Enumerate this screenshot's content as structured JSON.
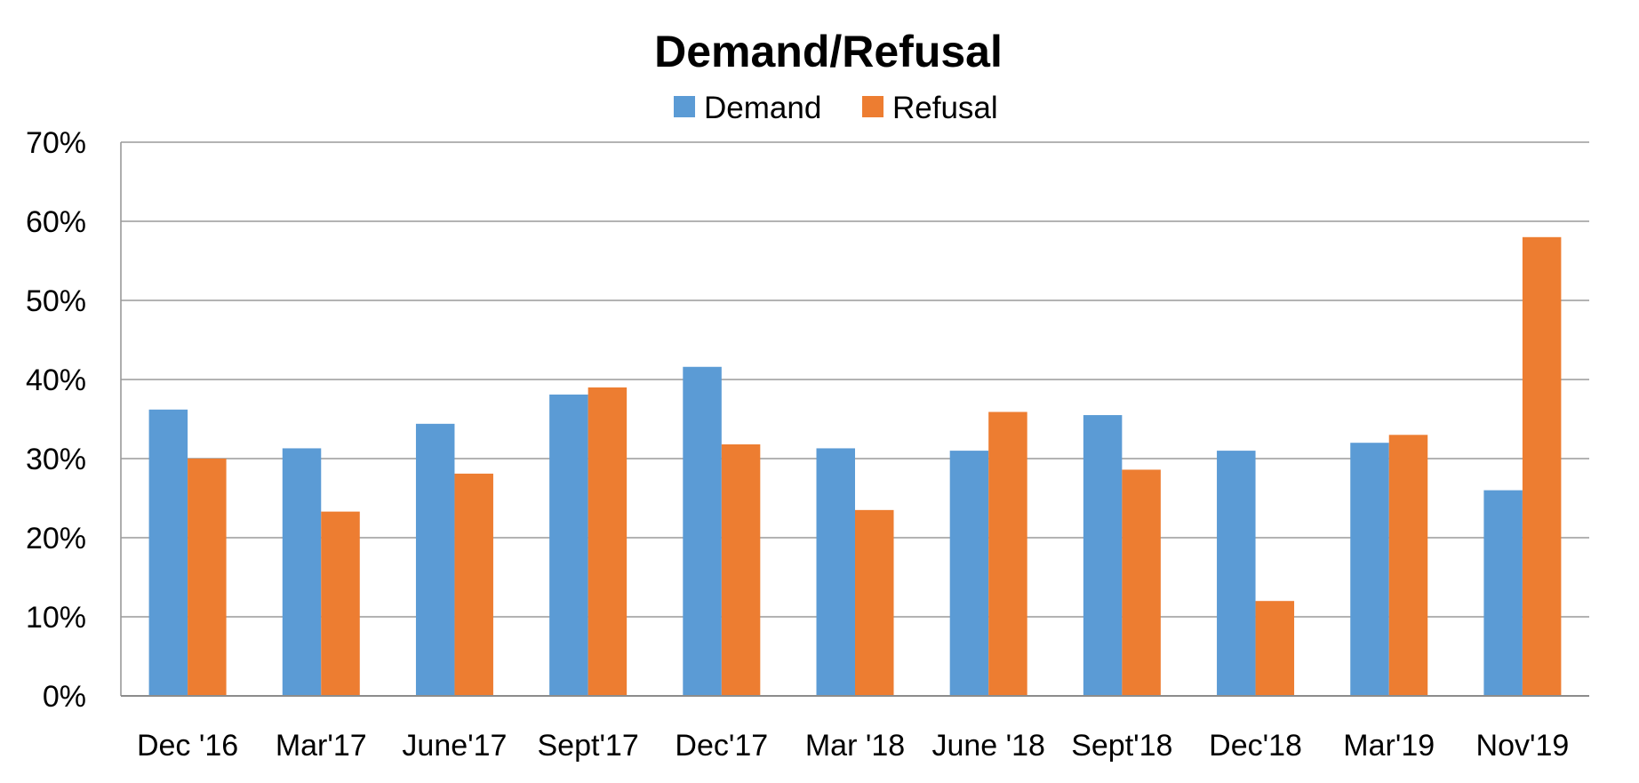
{
  "chart_data": {
    "type": "bar",
    "title": "Demand/Refusal",
    "xlabel": "",
    "ylabel": "",
    "categories": [
      "Dec '16",
      "Mar'17",
      "June'17",
      "Sept'17",
      "Dec'17",
      "Mar '18",
      "June '18",
      "Sept'18",
      "Dec'18",
      "Mar'19",
      "Nov'19"
    ],
    "series": [
      {
        "name": "Demand",
        "color": "#5b9bd5",
        "values": [
          36.2,
          31.3,
          34.4,
          38.1,
          41.6,
          31.3,
          31.0,
          35.5,
          31.0,
          32.0,
          26.0
        ]
      },
      {
        "name": "Refusal",
        "color": "#ed7d31",
        "values": [
          30.0,
          23.3,
          28.1,
          39.0,
          31.8,
          23.5,
          35.9,
          28.6,
          12.0,
          33.0,
          58.0
        ]
      }
    ],
    "ylim": [
      0,
      70
    ],
    "y_ticks": [
      "0%",
      "10%",
      "20%",
      "30%",
      "40%",
      "50%",
      "60%",
      "70%"
    ],
    "grid": true,
    "legend_position": "top"
  }
}
